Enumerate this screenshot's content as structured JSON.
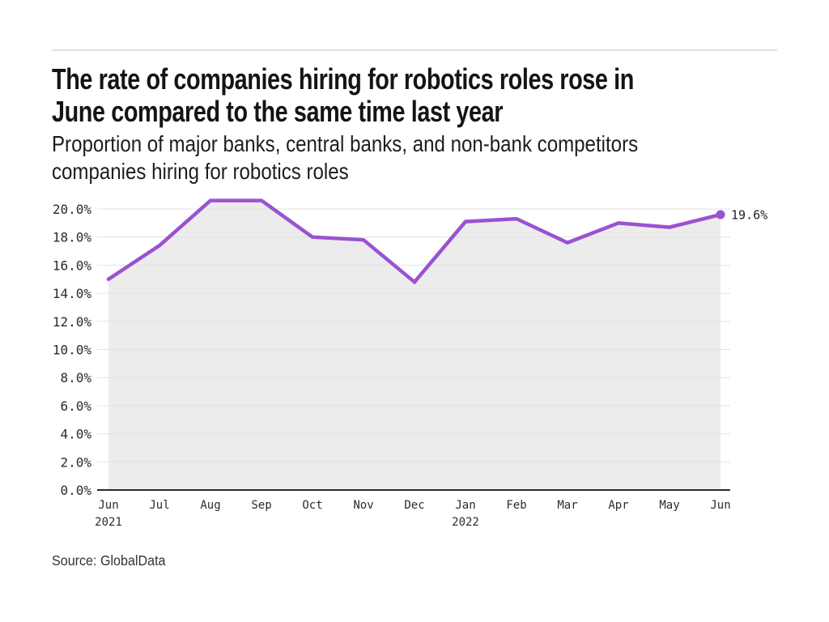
{
  "header": {
    "title_lines": [
      "The rate of companies hiring for robotics roles rose in",
      "June compared to the same time last year"
    ],
    "subtitle_lines": [
      "Proportion of major banks, central banks, and non-bank competitors",
      "companies hiring for robotics roles"
    ]
  },
  "footer": {
    "source": "Source: GlobalData"
  },
  "chart_data": {
    "type": "line",
    "title": "The rate of companies hiring for robotics roles rose in June compared to the same time last year",
    "subtitle": "Proportion of major banks, central banks, and non-bank competitors companies hiring for robotics roles",
    "source": "Source: GlobalData",
    "categories": [
      "Jun 2021",
      "Jul",
      "Aug",
      "Sep",
      "Oct",
      "Nov",
      "Dec",
      "Jan 2022",
      "Feb",
      "Mar",
      "Apr",
      "May",
      "Jun"
    ],
    "x_tick_labels": [
      "Jun",
      "Jul",
      "Aug",
      "Sep",
      "Oct",
      "Nov",
      "Dec",
      "Jan",
      "Feb",
      "Mar",
      "Apr",
      "May",
      "Jun"
    ],
    "x_year_labels": [
      {
        "at_index": 0,
        "label": "2021"
      },
      {
        "at_index": 7,
        "label": "2022"
      }
    ],
    "values": [
      15.0,
      17.4,
      20.6,
      20.6,
      18.0,
      17.8,
      14.8,
      19.1,
      19.3,
      17.6,
      19.0,
      18.7,
      19.6
    ],
    "end_point_label": "19.6%",
    "ytick_labels": [
      "0.0%",
      "2.0%",
      "4.0%",
      "6.0%",
      "8.0%",
      "10.0%",
      "12.0%",
      "14.0%",
      "16.0%",
      "18.0%",
      "20.0%"
    ],
    "ytick_step": 2,
    "ylim": [
      0,
      21
    ],
    "grid": true,
    "legend": "none",
    "line_color": "#9a52d2",
    "area_fill": "#ececec",
    "grid_color": "#e2e2e2",
    "axis_color": "#2a2a2a",
    "tick_color": "#2b2b2b",
    "background": "#ffffff"
  }
}
